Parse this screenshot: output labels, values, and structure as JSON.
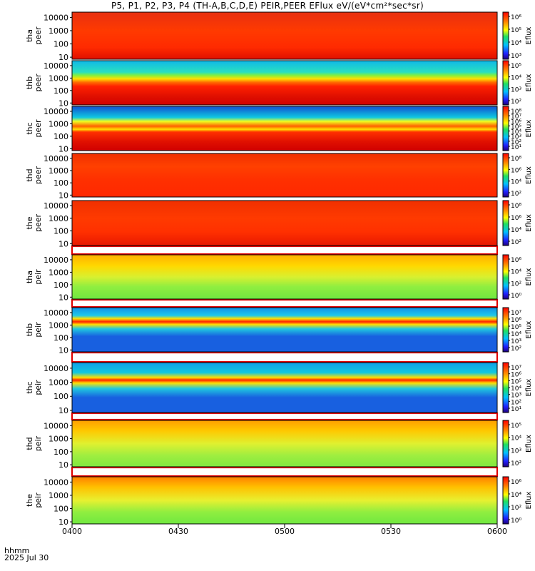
{
  "title": "P5, P1, P2, P3, P4 (TH-A,B,C,D,E) PEIR,PEER EFlux eV/(eV*cm²*sec*sr)",
  "chart_data": {
    "type": "heatmap",
    "title": "P5, P1, P2, P3, P4 (TH-A,B,C,D,E) PEIR,PEER EFlux eV/(eV*cm²*sec*sr)",
    "x_label_lines": [
      "hhmm",
      "2025 Jul 30"
    ],
    "x_ticks": [
      "0400",
      "0430",
      "0500",
      "0530",
      "0600"
    ],
    "y_ticks": [
      "10",
      "100",
      "1000",
      "10000"
    ],
    "colorbar_label": "Eflux",
    "panels": [
      {
        "probe": "tha",
        "species": "peer",
        "ylabel": [
          "tha",
          "peer"
        ],
        "cb_ticks": [
          "10⁶",
          "10⁵",
          "10⁴",
          "10³"
        ]
      },
      {
        "probe": "thb",
        "species": "peer",
        "ylabel": [
          "thb",
          "peer"
        ],
        "cb_ticks": [
          "10⁵",
          "10⁴",
          "10³",
          "10²"
        ]
      },
      {
        "probe": "thc",
        "species": "peer",
        "ylabel": [
          "thc",
          "peer"
        ],
        "cb_ticks": [
          "10⁸",
          "10⁷",
          "10⁶",
          "10⁵",
          "10⁴",
          "10³",
          "10²",
          "10¹"
        ]
      },
      {
        "probe": "thd",
        "species": "peer",
        "ylabel": [
          "thd",
          "peer"
        ],
        "cb_ticks": [
          "10⁸",
          "10⁶",
          "10⁴",
          "10²"
        ]
      },
      {
        "probe": "the",
        "species": "peer",
        "ylabel": [
          "the",
          "peer"
        ],
        "cb_ticks": [
          "10⁸",
          "10⁶",
          "10⁴",
          "10²"
        ]
      },
      {
        "probe": "tha",
        "species": "peir",
        "ylabel": [
          "tha",
          "peir"
        ],
        "cb_ticks": [
          "10⁶",
          "10⁴",
          "10²",
          "10⁰"
        ]
      },
      {
        "probe": "thb",
        "species": "peir",
        "ylabel": [
          "thb",
          "peir"
        ],
        "cb_ticks": [
          "10⁷",
          "10⁶",
          "10⁵",
          "10⁴",
          "10³",
          "10²"
        ]
      },
      {
        "probe": "thc",
        "species": "peir",
        "ylabel": [
          "thc",
          "peir"
        ],
        "cb_ticks": [
          "10⁷",
          "10⁶",
          "10⁵",
          "10⁴",
          "10³",
          "10²",
          "10¹"
        ]
      },
      {
        "probe": "thd",
        "species": "peir",
        "ylabel": [
          "thd",
          "peir"
        ],
        "cb_ticks": [
          "10⁵",
          "10⁴",
          "10³",
          "10²"
        ]
      },
      {
        "probe": "the",
        "species": "peir",
        "ylabel": [
          "the",
          "peir"
        ],
        "cb_ticks": [
          "10⁶",
          "10⁴",
          "10²",
          "10⁰"
        ]
      }
    ]
  }
}
